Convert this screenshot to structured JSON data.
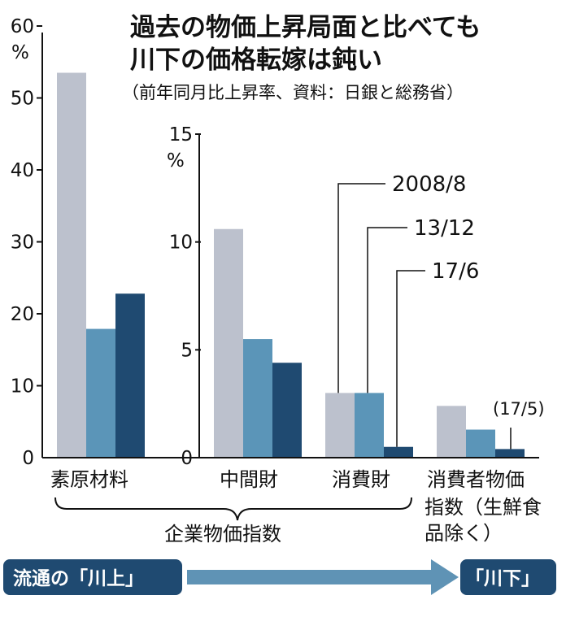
{
  "title_line1": "過去の物価上昇局面と比べても",
  "title_line2": "川下の価格転嫁は鈍い",
  "subtitle": "（前年同月比上昇率、資料：日銀と総務省）",
  "left_unit": "%",
  "right_unit": "%",
  "chart_data": {
    "type": "bar",
    "colors": [
      "#bcc1cd",
      "#5b95b8",
      "#1f4a71"
    ],
    "series_labels": [
      "2008/8",
      "13/12",
      "17/6"
    ],
    "cpi_note": "(17/5)",
    "panels": [
      {
        "axis": "left",
        "ylim": [
          0,
          60
        ],
        "yticks": [
          0,
          10,
          20,
          30,
          40,
          50,
          60
        ],
        "categories": [
          "素原材料"
        ],
        "series": [
          {
            "name": "2008/8",
            "values": [
              53.5
            ]
          },
          {
            "name": "13/12",
            "values": [
              17.9
            ]
          },
          {
            "name": "17/6",
            "values": [
              22.8
            ]
          }
        ]
      },
      {
        "axis": "right",
        "ylim": [
          0,
          15
        ],
        "yticks": [
          0,
          5,
          10,
          15
        ],
        "categories": [
          "中間財",
          "消費財",
          "消費者物価指数（生鮮食品除く）"
        ],
        "series": [
          {
            "name": "2008/8",
            "values": [
              10.6,
              3.0,
              2.4
            ]
          },
          {
            "name": "13/12",
            "values": [
              5.5,
              3.0,
              1.3
            ]
          },
          {
            "name": "17/6",
            "values": [
              4.4,
              0.5,
              0.4
            ]
          }
        ]
      }
    ]
  },
  "category_labels": {
    "raw": "素原材料",
    "intermediate": "中間財",
    "consumer": "消費財",
    "cpi_line1": "消費者物価",
    "cpi_line2": "指数（生鮮食",
    "cpi_line3": "品除く）"
  },
  "group_label": "企業物価指数",
  "flow": {
    "upstream": "流通の「川上」",
    "downstream": "「川下」"
  }
}
